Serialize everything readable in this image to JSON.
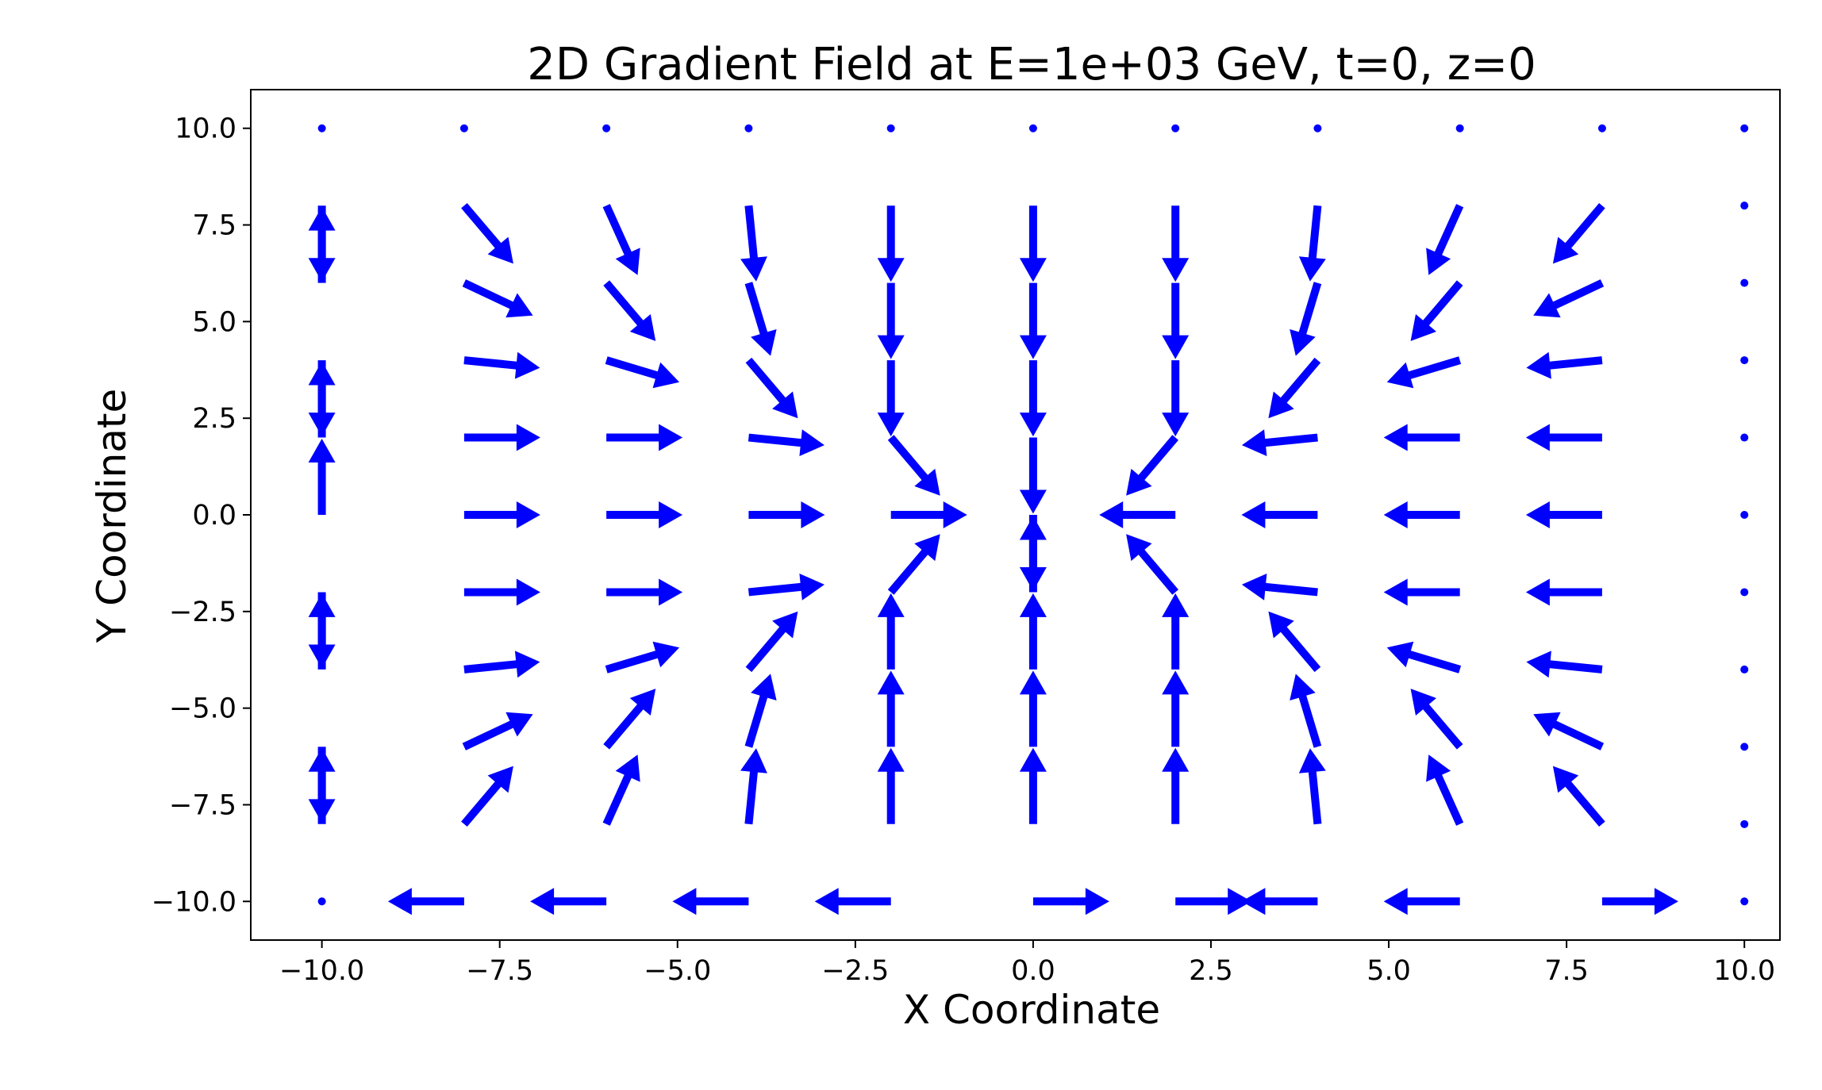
{
  "chart_data": {
    "type": "quiver",
    "title": "2D Gradient Field at E=1e+03 GeV, t=0, z=0",
    "xlabel": "X Coordinate",
    "ylabel": "Y Coordinate",
    "xlim": [
      -11,
      10.5
    ],
    "ylim": [
      -11,
      11
    ],
    "xticks": [
      -10,
      -7.5,
      -5,
      -2.5,
      0,
      2.5,
      5,
      7.5,
      10
    ],
    "yticks": [
      -10,
      -7.5,
      -5,
      -2.5,
      0,
      2.5,
      5,
      7.5,
      10
    ],
    "xtick_labels": [
      "−10.0",
      "−7.5",
      "−5.0",
      "−2.5",
      "0.0",
      "2.5",
      "5.0",
      "7.5",
      "10.0"
    ],
    "ytick_labels": [
      "−10.0",
      "−7.5",
      "−5.0",
      "−2.5",
      "0.0",
      "2.5",
      "5.0",
      "7.5",
      "10.0"
    ],
    "color": "#0000ff",
    "grid": false,
    "x": [
      -10,
      -8,
      -6,
      -4,
      -2,
      0,
      2,
      4,
      6,
      8,
      10
    ],
    "y": [
      10,
      8,
      6,
      4,
      2,
      0,
      -2,
      -4,
      -6,
      -8,
      -10
    ],
    "vectors": [
      [
        [
          0,
          0
        ],
        [
          0,
          0
        ],
        [
          0,
          0
        ],
        [
          0,
          0
        ],
        [
          0,
          0
        ],
        [
          0,
          0
        ],
        [
          0,
          0
        ],
        [
          0,
          0
        ],
        [
          0,
          0
        ],
        [
          0,
          0
        ],
        [
          0,
          0
        ]
      ],
      [
        [
          0,
          -1
        ],
        [
          0.72,
          -0.85
        ],
        [
          0.45,
          -1
        ],
        [
          0.1,
          -1
        ],
        [
          0,
          -1
        ],
        [
          0,
          -1
        ],
        [
          0,
          -1
        ],
        [
          -0.1,
          -1
        ],
        [
          -0.45,
          -1
        ],
        [
          -0.72,
          -0.85
        ],
        [
          0,
          0
        ]
      ],
      [
        [
          0,
          1
        ],
        [
          0.95,
          -0.45
        ],
        [
          0.72,
          -0.85
        ],
        [
          0.3,
          -1
        ],
        [
          0,
          -1
        ],
        [
          0,
          -1
        ],
        [
          0,
          -1
        ],
        [
          -0.3,
          -1
        ],
        [
          -0.72,
          -0.85
        ],
        [
          -0.95,
          -0.45
        ],
        [
          0,
          0
        ]
      ],
      [
        [
          0,
          -1
        ],
        [
          1,
          -0.1
        ],
        [
          1,
          -0.3
        ],
        [
          0.72,
          -0.85
        ],
        [
          0,
          -1
        ],
        [
          0,
          -1
        ],
        [
          0,
          -1
        ],
        [
          -0.72,
          -0.85
        ],
        [
          -1,
          -0.3
        ],
        [
          -1,
          -0.1
        ],
        [
          0,
          0
        ]
      ],
      [
        [
          0,
          1
        ],
        [
          1,
          0
        ],
        [
          1,
          0
        ],
        [
          1,
          -0.1
        ],
        [
          0.72,
          -0.85
        ],
        [
          0,
          -1
        ],
        [
          -0.72,
          -0.85
        ],
        [
          -1,
          -0.1
        ],
        [
          -1,
          0
        ],
        [
          -1,
          0
        ],
        [
          0,
          0
        ]
      ],
      [
        [
          0,
          1
        ],
        [
          1,
          0
        ],
        [
          1,
          0
        ],
        [
          1,
          0
        ],
        [
          1,
          0
        ],
        [
          0,
          -1
        ],
        [
          -1,
          0
        ],
        [
          -1,
          0
        ],
        [
          -1,
          0
        ],
        [
          -1,
          0
        ],
        [
          0,
          0
        ]
      ],
      [
        [
          0,
          -1
        ],
        [
          1,
          0
        ],
        [
          1,
          0
        ],
        [
          1,
          0.1
        ],
        [
          0.72,
          0.85
        ],
        [
          0,
          1
        ],
        [
          -0.72,
          0.85
        ],
        [
          -1,
          0.1
        ],
        [
          -1,
          0
        ],
        [
          -1,
          0
        ],
        [
          0,
          0
        ]
      ],
      [
        [
          0,
          1
        ],
        [
          1,
          0.1
        ],
        [
          1,
          0.3
        ],
        [
          0.72,
          0.85
        ],
        [
          0,
          1
        ],
        [
          0,
          1
        ],
        [
          0,
          1
        ],
        [
          -0.72,
          0.85
        ],
        [
          -1,
          0.3
        ],
        [
          -1,
          0.1
        ],
        [
          0,
          0
        ]
      ],
      [
        [
          0,
          -1
        ],
        [
          0.95,
          0.45
        ],
        [
          0.72,
          0.85
        ],
        [
          0.3,
          1
        ],
        [
          0,
          1
        ],
        [
          0,
          1
        ],
        [
          0,
          1
        ],
        [
          -0.3,
          1
        ],
        [
          -0.72,
          0.85
        ],
        [
          -0.95,
          0.45
        ],
        [
          0,
          0
        ]
      ],
      [
        [
          0,
          1
        ],
        [
          0.72,
          0.85
        ],
        [
          0.45,
          1
        ],
        [
          0.1,
          1
        ],
        [
          0,
          1
        ],
        [
          0,
          1
        ],
        [
          0,
          1
        ],
        [
          -0.1,
          1
        ],
        [
          -0.45,
          1
        ],
        [
          -0.72,
          0.85
        ],
        [
          0,
          0
        ]
      ],
      [
        [
          0,
          0
        ],
        [
          -1,
          0
        ],
        [
          -1,
          0
        ],
        [
          -1,
          0
        ],
        [
          -1,
          0
        ],
        [
          1,
          0
        ],
        [
          1,
          0
        ],
        [
          -1,
          0
        ],
        [
          -1,
          0
        ],
        [
          1,
          0
        ],
        [
          0,
          0
        ]
      ]
    ]
  }
}
